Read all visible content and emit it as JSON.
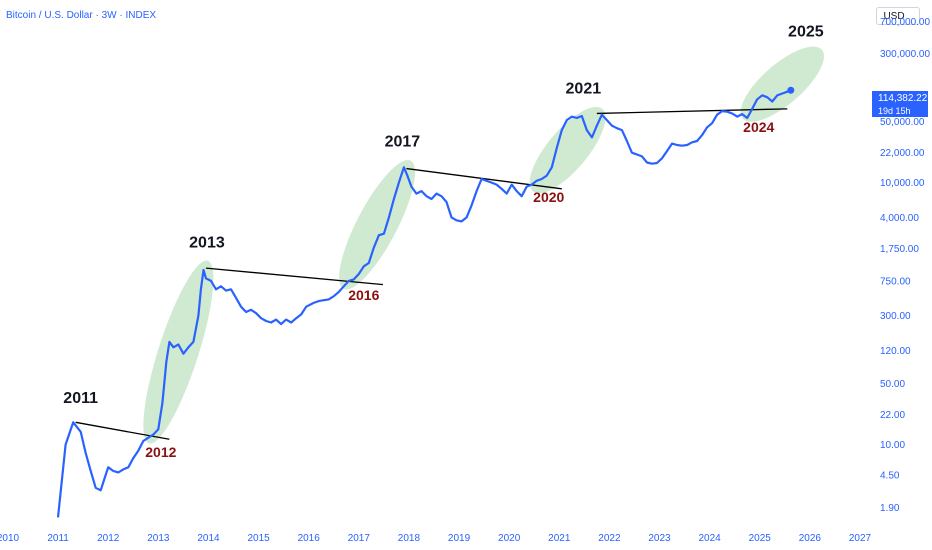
{
  "header": {
    "title": "Bitcoin / U.S. Dollar · 3W · INDEX",
    "currency_button": "USD"
  },
  "price_badge": {
    "price": "114,382.22",
    "countdown": "19d 15h"
  },
  "colors": {
    "line": "#2962ff",
    "highlight_ellipse": "#c8e6c9",
    "trendline": "#000000",
    "label_red": "#8b1010",
    "axis_text": "#2962ff"
  },
  "chart_data": {
    "type": "line",
    "title": "",
    "xlabel": "",
    "ylabel": "",
    "y_scale": "log",
    "ylim": [
      1.2,
      900000
    ],
    "xlim": [
      2010,
      2027.2
    ],
    "y_ticks": [
      {
        "value": 700000,
        "label": "700,000.00"
      },
      {
        "value": 300000,
        "label": "300,000.00"
      },
      {
        "value": 50000,
        "label": "50,000.00"
      },
      {
        "value": 22000,
        "label": "22,000.00"
      },
      {
        "value": 10000,
        "label": "10,000.00"
      },
      {
        "value": 4000,
        "label": "4,000.00"
      },
      {
        "value": 1750,
        "label": "1,750.00"
      },
      {
        "value": 750,
        "label": "750.00"
      },
      {
        "value": 300,
        "label": "300.00"
      },
      {
        "value": 120,
        "label": "120.00"
      },
      {
        "value": 50,
        "label": "50.00"
      },
      {
        "value": 22,
        "label": "22.00"
      },
      {
        "value": 10,
        "label": "10.00"
      },
      {
        "value": 4.5,
        "label": "4.50"
      },
      {
        "value": 1.9,
        "label": "1.90"
      }
    ],
    "x_ticks": [
      "2010",
      "2011",
      "2012",
      "2013",
      "2014",
      "2015",
      "2016",
      "2017",
      "2018",
      "2019",
      "2020",
      "2021",
      "2022",
      "2023",
      "2024",
      "2025",
      "2026",
      "2027"
    ],
    "series": [
      {
        "x": [
          2011.0,
          2011.15,
          2011.3,
          2011.45,
          2011.55,
          2011.65,
          2011.75,
          2011.85,
          2011.95,
          2012.0,
          2012.1,
          2012.2,
          2012.3,
          2012.4,
          2012.5,
          2012.6,
          2012.7,
          2012.8,
          2012.9,
          2013.0,
          2013.08,
          2013.16,
          2013.22,
          2013.3,
          2013.4,
          2013.5,
          2013.6,
          2013.7,
          2013.8,
          2013.85,
          2013.9,
          2013.95,
          2014.05,
          2014.15,
          2014.25,
          2014.35,
          2014.45,
          2014.55,
          2014.65,
          2014.75,
          2014.85,
          2014.95,
          2015.05,
          2015.15,
          2015.25,
          2015.35,
          2015.45,
          2015.55,
          2015.65,
          2015.75,
          2015.85,
          2015.95,
          2016.1,
          2016.2,
          2016.3,
          2016.4,
          2016.5,
          2016.6,
          2016.7,
          2016.8,
          2016.9,
          2017.0,
          2017.1,
          2017.2,
          2017.3,
          2017.4,
          2017.5,
          2017.6,
          2017.7,
          2017.8,
          2017.9,
          2017.97,
          2018.05,
          2018.15,
          2018.25,
          2018.35,
          2018.45,
          2018.55,
          2018.65,
          2018.75,
          2018.85,
          2018.95,
          2019.05,
          2019.15,
          2019.25,
          2019.35,
          2019.45,
          2019.55,
          2019.65,
          2019.75,
          2019.85,
          2019.95,
          2020.05,
          2020.15,
          2020.25,
          2020.35,
          2020.45,
          2020.55,
          2020.65,
          2020.75,
          2020.85,
          2020.95,
          2021.05,
          2021.15,
          2021.25,
          2021.35,
          2021.45,
          2021.55,
          2021.65,
          2021.75,
          2021.85,
          2021.95,
          2022.05,
          2022.15,
          2022.25,
          2022.35,
          2022.45,
          2022.55,
          2022.65,
          2022.75,
          2022.85,
          2022.95,
          2023.05,
          2023.15,
          2023.25,
          2023.35,
          2023.45,
          2023.55,
          2023.65,
          2023.75,
          2023.85,
          2023.95,
          2024.05,
          2024.15,
          2024.25,
          2024.35,
          2024.45,
          2024.55,
          2024.65,
          2024.75,
          2024.85,
          2024.95,
          2025.05,
          2025.15,
          2025.25,
          2025.35,
          2025.45,
          2025.55,
          2025.62
        ],
        "y": [
          1.5,
          10,
          18,
          14,
          8,
          5,
          3.2,
          3.0,
          4.5,
          5.5,
          5.0,
          4.8,
          5.2,
          5.5,
          7,
          8.5,
          11,
          12,
          13,
          15,
          30,
          90,
          150,
          130,
          140,
          110,
          130,
          150,
          300,
          600,
          1000,
          800,
          750,
          600,
          650,
          580,
          600,
          480,
          380,
          330,
          350,
          320,
          280,
          260,
          250,
          270,
          240,
          270,
          250,
          280,
          310,
          380,
          420,
          440,
          450,
          460,
          500,
          560,
          650,
          750,
          780,
          900,
          1100,
          1200,
          1800,
          2500,
          2600,
          4000,
          6500,
          10000,
          15000,
          12000,
          9000,
          7500,
          8000,
          7000,
          6500,
          7500,
          7000,
          6000,
          4000,
          3700,
          3600,
          4000,
          5500,
          8000,
          11000,
          10500,
          10000,
          9500,
          8500,
          7500,
          9500,
          8000,
          7000,
          9000,
          9500,
          10500,
          11000,
          12000,
          15000,
          25000,
          40000,
          52000,
          57000,
          55000,
          58000,
          40000,
          33000,
          45000,
          60000,
          52000,
          45000,
          42000,
          40000,
          30000,
          22000,
          21000,
          20000,
          17000,
          16500,
          16800,
          19000,
          23000,
          28000,
          27000,
          26500,
          27000,
          29000,
          30000,
          35000,
          43000,
          48000,
          60000,
          66000,
          65000,
          62000,
          57000,
          61000,
          55000,
          70000,
          90000,
          100000,
          95000,
          85000,
          100000,
          105000,
          110000,
          114382
        ]
      }
    ],
    "trendlines": [
      {
        "x": [
          2011.35,
          2013.22
        ],
        "y": [
          18,
          11.5
        ]
      },
      {
        "x": [
          2013.95,
          2017.48
        ],
        "y": [
          1050,
          680
        ]
      },
      {
        "x": [
          2017.95,
          2021.05
        ],
        "y": [
          14500,
          8500
        ]
      },
      {
        "x": [
          2021.75,
          2025.55
        ],
        "y": [
          62000,
          70000
        ]
      }
    ],
    "highlight_ellipses": [
      {
        "x_range": [
          2012.85,
          2013.95
        ],
        "y_range": [
          12,
          1100
        ]
      },
      {
        "x_range": [
          2016.75,
          2017.98
        ],
        "y_range": [
          700,
          15500
        ]
      },
      {
        "x_range": [
          2020.55,
          2021.78
        ],
        "y_range": [
          9000,
          62000
        ]
      },
      {
        "x_range": [
          2024.75,
          2026.15
        ],
        "y_range": [
          60000,
          300000
        ]
      }
    ],
    "annotations": [
      {
        "text": "2011",
        "x": 2011.45,
        "y": 30,
        "style": "black"
      },
      {
        "text": "2012",
        "x": 2013.05,
        "y": 7.2,
        "style": "red"
      },
      {
        "text": "2013",
        "x": 2013.97,
        "y": 1800,
        "style": "black"
      },
      {
        "text": "2016",
        "x": 2017.1,
        "y": 450,
        "style": "red"
      },
      {
        "text": "2017",
        "x": 2017.87,
        "y": 26000,
        "style": "black"
      },
      {
        "text": "2020",
        "x": 2020.79,
        "y": 6000,
        "style": "red"
      },
      {
        "text": "2021",
        "x": 2021.48,
        "y": 105000,
        "style": "black"
      },
      {
        "text": "2024",
        "x": 2024.98,
        "y": 38000,
        "style": "red"
      },
      {
        "text": "2025",
        "x": 2025.92,
        "y": 470000,
        "style": "black"
      }
    ]
  }
}
